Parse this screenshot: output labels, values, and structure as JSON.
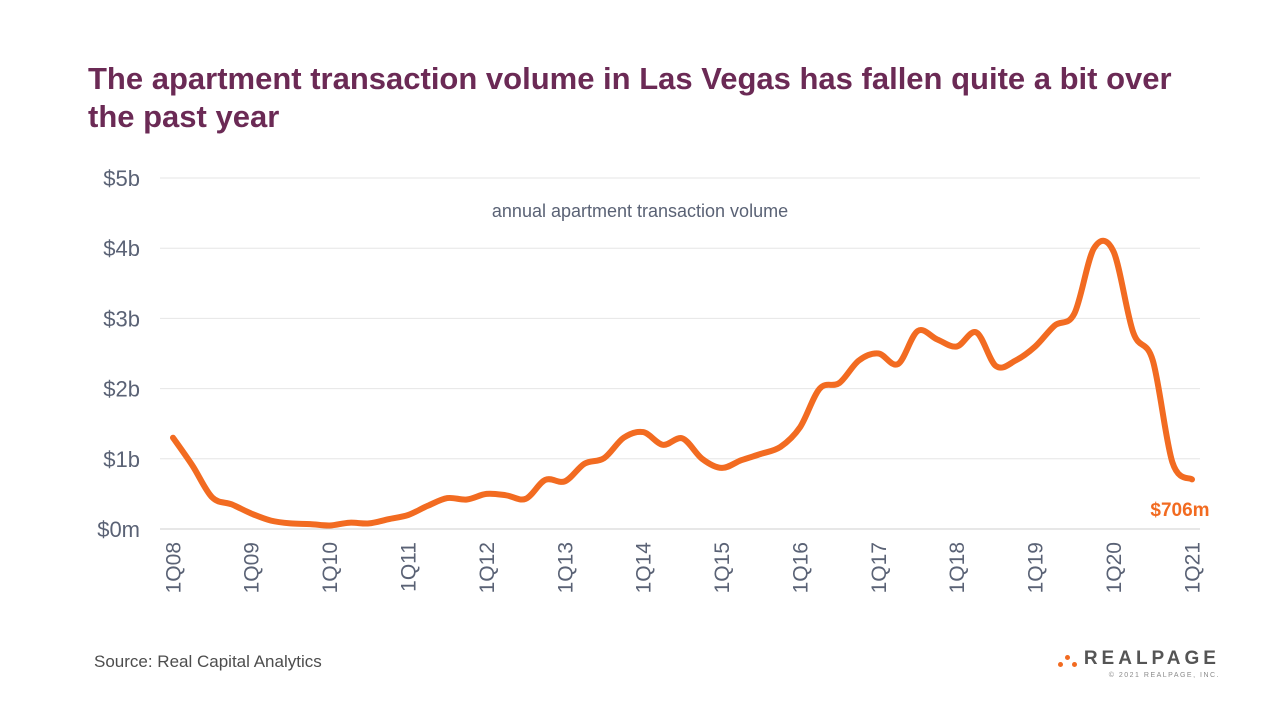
{
  "title": "The apartment transaction volume in Las Vegas has fallen quite a bit over the past year",
  "source": "Source: Real Capital Analytics",
  "logo": {
    "wordmark": "REALPAGE",
    "copyright": "© 2021 REALPAGE, INC."
  },
  "colors": {
    "title": "#6b2a55",
    "line": "#f26b21",
    "axis_text": "#5a6275",
    "grid": "#e6e6e6",
    "brand_accent": "#f26b21"
  },
  "chart_data": {
    "type": "line",
    "title": "annual apartment transaction volume",
    "xlabel": "",
    "ylabel": "",
    "y_unit": "billions USD",
    "ylim": [
      0,
      5
    ],
    "yticks": [
      {
        "value": 0,
        "label": "$0m"
      },
      {
        "value": 1,
        "label": "$1b"
      },
      {
        "value": 2,
        "label": "$2b"
      },
      {
        "value": 3,
        "label": "$3b"
      },
      {
        "value": 4,
        "label": "$4b"
      },
      {
        "value": 5,
        "label": "$5b"
      }
    ],
    "xticks": [
      "1Q08",
      "1Q09",
      "1Q10",
      "1Q11",
      "1Q12",
      "1Q13",
      "1Q14",
      "1Q15",
      "1Q16",
      "1Q17",
      "1Q18",
      "1Q19",
      "1Q20",
      "1Q21"
    ],
    "grid": true,
    "x": [
      "1Q08",
      "2Q08",
      "3Q08",
      "4Q08",
      "1Q09",
      "2Q09",
      "3Q09",
      "4Q09",
      "1Q10",
      "2Q10",
      "3Q10",
      "4Q10",
      "1Q11",
      "2Q11",
      "3Q11",
      "4Q11",
      "1Q12",
      "2Q12",
      "3Q12",
      "4Q12",
      "1Q13",
      "2Q13",
      "3Q13",
      "4Q13",
      "1Q14",
      "2Q14",
      "3Q14",
      "4Q14",
      "1Q15",
      "2Q15",
      "3Q15",
      "4Q15",
      "1Q16",
      "2Q16",
      "3Q16",
      "4Q16",
      "1Q17",
      "2Q17",
      "3Q17",
      "4Q17",
      "1Q18",
      "2Q18",
      "3Q18",
      "4Q18",
      "1Q19",
      "2Q19",
      "3Q19",
      "4Q19",
      "1Q20",
      "2Q20",
      "3Q20",
      "4Q20",
      "1Q21"
    ],
    "series": [
      {
        "values": [
          1.3,
          0.9,
          0.45,
          0.35,
          0.22,
          0.12,
          0.08,
          0.07,
          0.05,
          0.09,
          0.08,
          0.14,
          0.2,
          0.33,
          0.44,
          0.42,
          0.5,
          0.48,
          0.43,
          0.7,
          0.68,
          0.93,
          1.01,
          1.3,
          1.38,
          1.2,
          1.29,
          1.0,
          0.87,
          0.98,
          1.07,
          1.17,
          1.45,
          2.0,
          2.08,
          2.4,
          2.5,
          2.35,
          2.82,
          2.7,
          2.6,
          2.8,
          2.32,
          2.4,
          2.6,
          2.9,
          3.07,
          4.0,
          3.95,
          2.8,
          2.4,
          0.95,
          0.706
        ]
      }
    ],
    "end_label": "$706m"
  }
}
